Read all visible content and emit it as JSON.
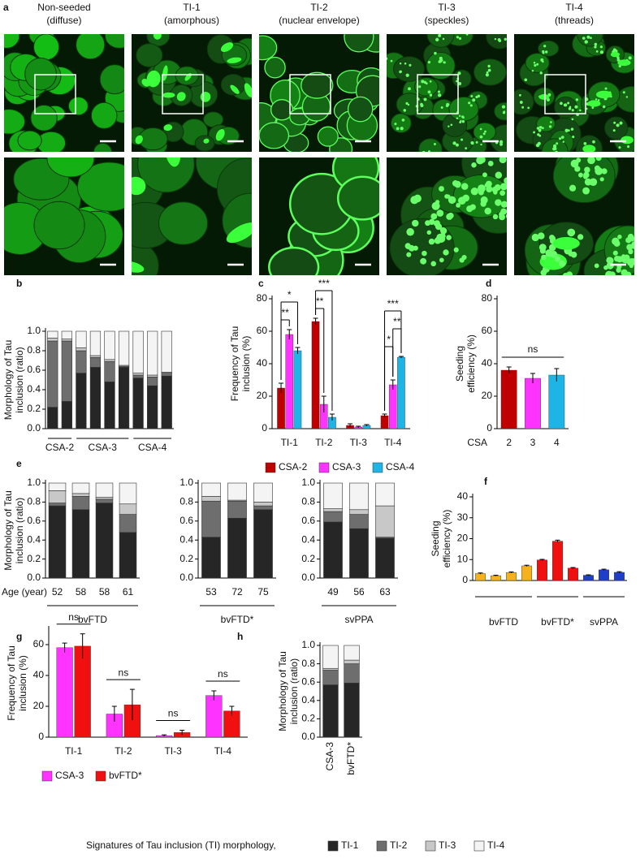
{
  "panel_a": {
    "label": "a",
    "columns": [
      {
        "title": [
          "Non-seeded",
          "(diffuse)"
        ]
      },
      {
        "title": [
          "TI-1",
          "(amorphous)"
        ]
      },
      {
        "title": [
          "TI-2",
          "(nuclear envelope)"
        ]
      },
      {
        "title": [
          "TI-3",
          "(speckles)"
        ]
      },
      {
        "title": [
          "TI-4",
          "(threads)"
        ]
      }
    ]
  },
  "chart_data": [
    {
      "type": "stacked_bar",
      "panel": "b",
      "y_label": [
        "Morphology of Tau",
        "inclusion (ratio)"
      ],
      "group_labels": [
        "CSA-2",
        "CSA-2",
        "CSA-3",
        "CSA-3",
        "CSA-3",
        "CSA-3",
        "CSA-4",
        "CSA-4",
        "CSA-4"
      ],
      "group_colors": [
        "#e02020",
        "#e02020",
        "#f030f0",
        "#f030f0",
        "#f030f0",
        "#f030f0",
        "#20c0c0",
        "#20c0c0",
        "#20c0c0"
      ],
      "ylim": [
        0,
        1
      ],
      "yticks": [
        {
          "value": 0,
          "label": "0.0"
        },
        0.2,
        0.4,
        0.6,
        0.8,
        {
          "value": 1,
          "label": "1.0"
        }
      ],
      "series": [
        {
          "color": "#262626",
          "values": [
            0.22,
            0.28,
            0.57,
            0.63,
            0.48,
            0.63,
            0.52,
            0.44,
            0.54
          ]
        },
        {
          "color": "#6e6e6e",
          "values": [
            0.68,
            0.62,
            0.23,
            0.1,
            0.21,
            0.01,
            0.03,
            0.09,
            0.03
          ]
        },
        {
          "color": "#c8c8c8",
          "values": [
            0.03,
            0.02,
            0.03,
            0.02,
            0.02,
            0.01,
            0.02,
            0.02,
            0.01
          ]
        },
        {
          "color": "#f4f4f4",
          "values": [
            0.07,
            0.08,
            0.17,
            0.25,
            0.29,
            0.35,
            0.43,
            0.45,
            0.42
          ]
        }
      ]
    },
    {
      "type": "grouped_bar",
      "panel": "c",
      "y_label": [
        "Frequency of Tau",
        "inclusion (%)"
      ],
      "categories": [
        "TI-1",
        "TI-2",
        "TI-3",
        "TI-4"
      ],
      "series": [
        {
          "name": "CSA-2",
          "color": "#c00000",
          "values": [
            25,
            66,
            2,
            8
          ],
          "errors": [
            3,
            2,
            1,
            1
          ]
        },
        {
          "name": "CSA-3",
          "color": "#ff33ff",
          "values": [
            58,
            15,
            1,
            27
          ],
          "errors": [
            3,
            5,
            0.5,
            3
          ]
        },
        {
          "name": "CSA-4",
          "color": "#1fb4e6",
          "values": [
            48,
            7,
            2,
            44
          ],
          "errors": [
            2,
            2,
            0.5,
            0.5
          ]
        }
      ],
      "ylim": [
        0,
        80
      ],
      "yticks": [
        0,
        20,
        40,
        60,
        80
      ],
      "annotations": [
        {
          "text": "**",
          "category": "TI-1",
          "from": "CSA-2",
          "to": "CSA-3"
        },
        {
          "text": "*",
          "category": "TI-1",
          "from": "CSA-2",
          "to": "CSA-4"
        },
        {
          "text": "**",
          "category": "TI-2",
          "from": "CSA-2",
          "to": "CSA-3"
        },
        {
          "text": "***",
          "category": "TI-2",
          "from": "CSA-2",
          "to": "CSA-4"
        },
        {
          "text": "*",
          "category": "TI-4",
          "from": "CSA-2",
          "to": "CSA-3"
        },
        {
          "text": "**",
          "category": "TI-4",
          "from": "CSA-3",
          "to": "CSA-4"
        },
        {
          "text": "***",
          "category": "TI-4",
          "from": "CSA-2",
          "to": "CSA-4"
        }
      ]
    },
    {
      "type": "bar",
      "panel": "d",
      "y_label": [
        "Seeding",
        "efficiency (%)"
      ],
      "x_label": "CSA",
      "categories": [
        "2",
        "3",
        "4"
      ],
      "colors": [
        "#c00000",
        "#ff33ff",
        "#1fb4e6"
      ],
      "values": [
        36,
        31,
        33
      ],
      "errors": [
        2,
        3,
        4
      ],
      "ylim": [
        0,
        80
      ],
      "yticks": [
        0,
        20,
        40,
        60,
        80
      ],
      "annotations": [
        {
          "text": "ns"
        }
      ]
    },
    {
      "type": "stacked_bar",
      "panel": "e",
      "y_label": [
        "Morphology of Tau",
        "inclusion (ratio)"
      ],
      "x_label": "Age (year)",
      "categories": [
        "52",
        "58",
        "58",
        "61"
      ],
      "group_label": "bvFTD",
      "group_color": "#e8b000",
      "ylim": [
        0,
        1
      ],
      "yticks": [
        {
          "value": 0,
          "label": "0.0"
        },
        0.2,
        0.4,
        0.6,
        0.8,
        {
          "value": 1,
          "label": "1.0"
        }
      ],
      "series": [
        {
          "color": "#262626",
          "values": [
            0.76,
            0.72,
            0.79,
            0.48
          ]
        },
        {
          "color": "#6e6e6e",
          "values": [
            0.03,
            0.14,
            0.04,
            0.19
          ]
        },
        {
          "color": "#c8c8c8",
          "values": [
            0.13,
            0.03,
            0.02,
            0.11
          ]
        },
        {
          "color": "#f4f4f4",
          "values": [
            0.08,
            0.11,
            0.15,
            0.22
          ]
        }
      ]
    },
    {
      "type": "stacked_bar",
      "categories": [
        "53",
        "72",
        "75"
      ],
      "group_label": "bvFTD*",
      "group_color": "#e00000",
      "ylim": [
        0,
        1
      ],
      "yticks": [
        {
          "value": 0,
          "label": "0.0"
        },
        0.2,
        0.4,
        0.6,
        0.8,
        {
          "value": 1,
          "label": "1.0"
        }
      ],
      "series": [
        {
          "color": "#262626",
          "values": [
            0.43,
            0.63,
            0.72
          ]
        },
        {
          "color": "#6e6e6e",
          "values": [
            0.38,
            0.18,
            0.04
          ]
        },
        {
          "color": "#c8c8c8",
          "values": [
            0.05,
            0.01,
            0.04
          ]
        },
        {
          "color": "#f4f4f4",
          "values": [
            0.14,
            0.18,
            0.2
          ]
        }
      ]
    },
    {
      "type": "stacked_bar",
      "categories": [
        "49",
        "56",
        "63"
      ],
      "group_label": "svPPA",
      "group_color": "#1f3fbf",
      "ylim": [
        0,
        1
      ],
      "yticks": [
        {
          "value": 0,
          "label": "0.0"
        },
        0.2,
        0.4,
        0.6,
        0.8,
        {
          "value": 1,
          "label": "1.0"
        }
      ],
      "series": [
        {
          "color": "#262626",
          "values": [
            0.59,
            0.52,
            0.42
          ]
        },
        {
          "color": "#6e6e6e",
          "values": [
            0.11,
            0.15,
            0.01
          ]
        },
        {
          "color": "#c8c8c8",
          "values": [
            0.03,
            0.05,
            0.33
          ]
        },
        {
          "color": "#f4f4f4",
          "values": [
            0.27,
            0.28,
            0.24
          ]
        }
      ]
    },
    {
      "type": "bar",
      "panel": "f",
      "y_label": [
        "Seeding",
        "efficiency (%)"
      ],
      "group_labels": [
        "bvFTD",
        "bvFTD",
        "bvFTD",
        "bvFTD",
        "bvFTD*",
        "bvFTD*",
        "bvFTD*",
        "svPPA",
        "svPPA",
        "svPPA"
      ],
      "colors": [
        "#f5b21c",
        "#f5b21c",
        "#f5b21c",
        "#f5b21c",
        "#f01010",
        "#f01010",
        "#f01010",
        "#1f3fc8",
        "#1f3fc8",
        "#1f3fc8"
      ],
      "values": [
        3.3,
        2.3,
        3.8,
        7.0,
        9.8,
        18.8,
        5.9,
        2.5,
        5.1,
        3.9
      ],
      "errors": [
        0.3,
        0.2,
        0.3,
        0.3,
        0.3,
        0.5,
        0.3,
        0.2,
        0.3,
        0.3
      ],
      "ylim": [
        0,
        40
      ],
      "yticks": [
        0,
        10,
        20,
        30,
        40
      ]
    },
    {
      "type": "grouped_bar",
      "panel": "g",
      "y_label": [
        "Frequency of Tau",
        "inclusion (%)"
      ],
      "categories": [
        "TI-1",
        "TI-2",
        "TI-3",
        "TI-4"
      ],
      "series": [
        {
          "name": "CSA-3",
          "color": "#ff33ff",
          "values": [
            58,
            15,
            1,
            27
          ],
          "errors": [
            3,
            5,
            0.5,
            3
          ]
        },
        {
          "name": "bvFTD*",
          "color": "#f01010",
          "values": [
            59,
            21,
            3,
            17
          ],
          "errors": [
            8,
            10,
            1.5,
            3
          ]
        }
      ],
      "ylim": [
        0,
        70
      ],
      "yticks": [
        0,
        20,
        40,
        60
      ],
      "annotations": [
        {
          "text": "ns",
          "category": "TI-1"
        },
        {
          "text": "ns",
          "category": "TI-2"
        },
        {
          "text": "ns",
          "category": "TI-3"
        },
        {
          "text": "ns",
          "category": "TI-4"
        }
      ]
    },
    {
      "type": "stacked_bar",
      "panel": "h",
      "y_label": [
        "Morphology of Tau",
        "inclusion (ratio)"
      ],
      "categories": [
        "CSA-3",
        "bvFTD*"
      ],
      "category_colors": [
        "#ff33ff",
        "#f01010"
      ],
      "rotated_labels": true,
      "ylim": [
        0,
        1
      ],
      "yticks": [
        {
          "value": 0,
          "label": "0.0"
        },
        0.2,
        0.4,
        0.6,
        0.8,
        {
          "value": 1,
          "label": "1.0"
        }
      ],
      "series": [
        {
          "color": "#262626",
          "values": [
            0.57,
            0.59
          ]
        },
        {
          "color": "#6e6e6e",
          "values": [
            0.16,
            0.21
          ]
        },
        {
          "color": "#c8c8c8",
          "values": [
            0.02,
            0.04
          ]
        },
        {
          "color": "#f4f4f4",
          "values": [
            0.25,
            0.16
          ]
        }
      ]
    }
  ],
  "legend": {
    "title": "Signatures of Tau inclusion (TI) morphology,",
    "items": [
      {
        "name": "TI-1",
        "color": "#262626"
      },
      {
        "name": "TI-2",
        "color": "#6e6e6e"
      },
      {
        "name": "TI-3",
        "color": "#c8c8c8"
      },
      {
        "name": "TI-4",
        "color": "#f4f4f4"
      }
    ]
  }
}
